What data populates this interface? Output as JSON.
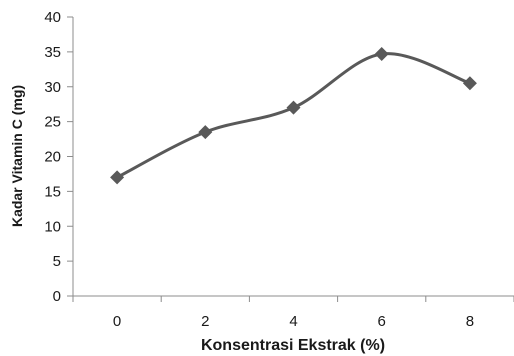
{
  "chart_data": {
    "type": "line",
    "title": "",
    "xlabel": "Konsentrasi Ekstrak (%)",
    "ylabel": "Kadar Vitamin C (mg)",
    "x": [
      0,
      2,
      4,
      6,
      8
    ],
    "series": [
      {
        "values": [
          17,
          23.5,
          27,
          34.7,
          30.5
        ]
      }
    ],
    "xticks": [
      "0",
      "2",
      "4",
      "6",
      "8"
    ],
    "yticks": [
      "0",
      "5",
      "10",
      "15",
      "20",
      "25",
      "30",
      "35",
      "40"
    ],
    "ylim": [
      0,
      40
    ],
    "grid": false,
    "line_color": "#595959",
    "marker": "diamond",
    "smooth": true
  }
}
